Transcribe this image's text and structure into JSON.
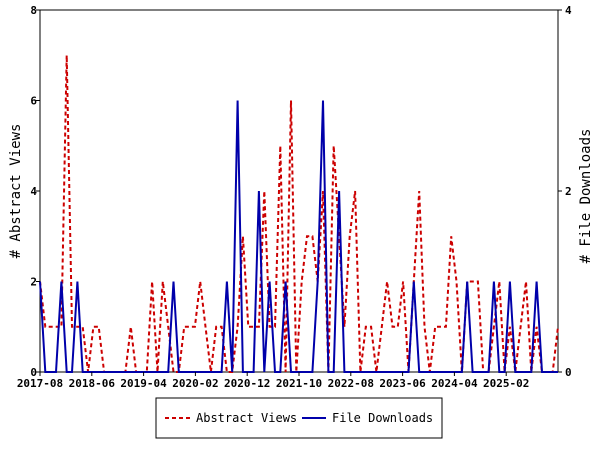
{
  "chart_data": {
    "type": "line",
    "x_start": "2017-08",
    "x_end": "2025-12",
    "x_tick_labels": [
      "2017-08",
      "2018-06",
      "2019-04",
      "2020-02",
      "2020-12",
      "2021-10",
      "2022-08",
      "2023-06",
      "2024-04",
      "2025-02"
    ],
    "ylabel": "# Abstract Views",
    "y2label": "# File Downloads",
    "ylim": [
      0,
      8
    ],
    "y2lim": [
      0,
      4
    ],
    "y_ticks": [
      "0",
      "2",
      "4",
      "6",
      "8"
    ],
    "y2_ticks": [
      "0",
      "2",
      "4"
    ],
    "grid": false,
    "legend_position": "bottom",
    "series": [
      {
        "name": "Abstract Views",
        "axis": "left",
        "color": "#cc0000",
        "style": "dashed",
        "values": [
          2,
          1,
          1,
          1,
          1,
          7,
          1,
          1,
          1,
          0,
          1,
          1,
          0,
          0,
          0,
          0,
          0,
          1,
          0,
          0,
          0,
          2,
          0,
          2,
          1,
          0,
          0,
          1,
          1,
          1,
          2,
          1,
          0,
          1,
          1,
          0,
          0,
          1,
          3,
          1,
          1,
          1,
          4,
          1,
          1,
          5,
          0,
          6,
          0,
          2,
          3,
          3,
          2,
          4,
          0,
          5,
          3,
          1,
          3,
          4,
          0,
          1,
          1,
          0,
          1,
          2,
          1,
          1,
          2,
          0,
          2,
          4,
          1,
          0,
          1,
          1,
          1,
          3,
          2,
          0,
          2,
          2,
          2,
          0,
          0,
          1,
          2,
          0,
          1,
          0,
          1,
          2,
          0,
          1,
          0,
          0,
          0,
          1
        ]
      },
      {
        "name": "File Downloads",
        "axis": "right",
        "color": "#0000aa",
        "style": "solid",
        "values": [
          1,
          0,
          0,
          0,
          1,
          0,
          0,
          1,
          0,
          0,
          0,
          0,
          0,
          0,
          0,
          0,
          0,
          0,
          0,
          0,
          0,
          0,
          0,
          0,
          0,
          1,
          0,
          0,
          0,
          0,
          0,
          0,
          0,
          0,
          0,
          1,
          0,
          3,
          0,
          0,
          0,
          2,
          0,
          1,
          0,
          0,
          1,
          0,
          0,
          0,
          0,
          0,
          1,
          3,
          0,
          0,
          2,
          0,
          0,
          0,
          0,
          0,
          0,
          0,
          0,
          0,
          0,
          0,
          0,
          0,
          1,
          0,
          0,
          0,
          0,
          0,
          0,
          0,
          0,
          0,
          1,
          0,
          0,
          0,
          0,
          1,
          0,
          0,
          1,
          0,
          0,
          0,
          0,
          1,
          0,
          0,
          0,
          0
        ]
      }
    ]
  }
}
